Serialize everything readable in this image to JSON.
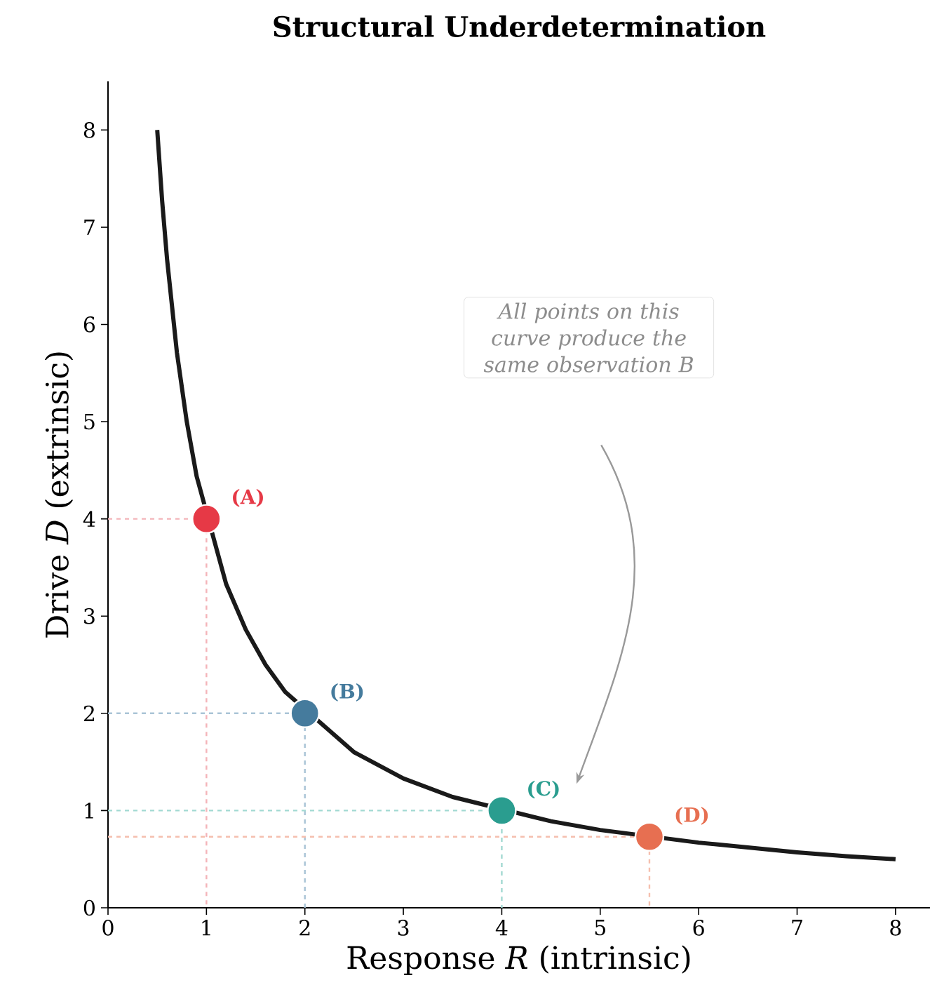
{
  "chart_data": {
    "type": "line",
    "title": "Structural Underdetermination",
    "xlabel": "Response *R* (intrinsic)",
    "ylabel": "Drive *D* (extrinsic)",
    "xlim": [
      0,
      8.35
    ],
    "ylim": [
      0,
      8.5
    ],
    "xticks": [
      0,
      1,
      2,
      3,
      4,
      5,
      6,
      7,
      8
    ],
    "yticks": [
      0,
      1,
      2,
      3,
      4,
      5,
      6,
      7,
      8
    ],
    "grid": false,
    "series": [
      {
        "color": "#f4b4b9",
        "line_style": "dashed",
        "marker": "none",
        "x": [
          0,
          1,
          1
        ],
        "values": [
          4,
          4,
          0
        ]
      },
      {
        "color": "#a9c4d6",
        "line_style": "dashed",
        "marker": "none",
        "x": [
          0,
          2,
          2
        ],
        "values": [
          2,
          2,
          0
        ]
      },
      {
        "color": "#a2d9d2",
        "line_style": "dashed",
        "marker": "none",
        "x": [
          0,
          4,
          4
        ],
        "values": [
          1,
          1,
          0
        ]
      },
      {
        "color": "#f5bfae",
        "line_style": "dashed",
        "marker": "none",
        "x": [
          0,
          5.5,
          5.5
        ],
        "values": [
          0.73,
          0.73,
          0
        ]
      },
      {
        "color": "#1a1a1a",
        "line_style": "solid",
        "marker": "none",
        "x": [
          0.5,
          0.55,
          0.6,
          0.7,
          0.8,
          0.9,
          1.2,
          1.4,
          1.6,
          1.8,
          2.5,
          3,
          3.5,
          4.5,
          5,
          6,
          6.5,
          7,
          7.5,
          8
        ],
        "values": [
          8,
          7.27,
          6.67,
          5.71,
          5,
          4.44,
          3.33,
          2.86,
          2.5,
          2.22,
          1.6,
          1.33,
          1.14,
          0.89,
          0.8,
          0.67,
          0.62,
          0.57,
          0.53,
          0.5
        ]
      },
      {
        "type": "scatter",
        "marker": "circle",
        "colors": [
          "#e63946",
          "#457b9d",
          "#2a9d8f",
          "#e76f51"
        ],
        "x": [
          1,
          2,
          4,
          5.5
        ],
        "values": [
          4,
          2,
          1,
          0.73
        ]
      }
    ],
    "annotations": [
      {
        "text": "(A)",
        "x": 1,
        "y": 4
      },
      {
        "text": "(B)",
        "x": 2,
        "y": 2
      },
      {
        "text": "(C)",
        "x": 4,
        "y": 1
      },
      {
        "text": "(D)",
        "x": 5.5,
        "y": 0.73
      },
      "All points on this curve produce the same observation B"
    ]
  }
}
